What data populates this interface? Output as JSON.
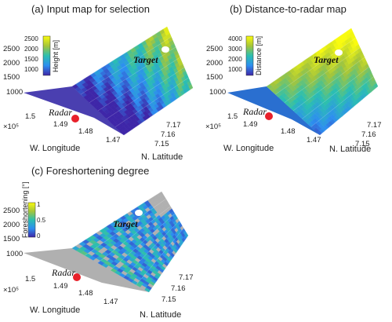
{
  "chart_data": [
    {
      "type": "surface",
      "title": "(a) Input map for selection",
      "xlabel": "W. Longitude",
      "ylabel": "N. Latitude",
      "z_ticks": [
        "2500",
        "2000",
        "1500",
        "1000"
      ],
      "x_ticks": [
        "1.5",
        "1.49",
        "1.48",
        "1.47"
      ],
      "x_exponent": "×10⁵",
      "y_ticks": [
        "7.17",
        "7.16",
        "7.15"
      ],
      "colorbar": {
        "label": "Height [m]",
        "ticks": [
          "2500",
          "2000",
          "1500",
          "1000"
        ],
        "range": [
          800,
          2600
        ],
        "colors": [
          "#3e26a8",
          "#2d8ef0",
          "#2bbfb0",
          "#a5c53a",
          "#f9fb0e"
        ]
      },
      "annotations": [
        "Radar",
        "Target"
      ],
      "colors": {
        "radar_marker": "#e8202a",
        "target_marker": "#ffffff"
      }
    },
    {
      "type": "surface",
      "title": "(b) Distance-to-radar map",
      "xlabel": "W. Longitude",
      "ylabel": "N. Latitude",
      "z_ticks": [
        "2500",
        "2000",
        "1500",
        "1000"
      ],
      "x_ticks": [
        "1.5",
        "1.49",
        "1.48",
        "1.47"
      ],
      "x_exponent": "×10⁵",
      "y_ticks": [
        "7.17",
        "7.16",
        "7.15"
      ],
      "colorbar": {
        "label": "Distance [m]",
        "ticks": [
          "4000",
          "3000",
          "2000",
          "1000"
        ],
        "range": [
          500,
          4200
        ],
        "colors": [
          "#3e26a8",
          "#2d8ef0",
          "#2bbfb0",
          "#a5c53a",
          "#f9fb0e"
        ]
      },
      "annotations": [
        "Radar",
        "Target"
      ],
      "colors": {
        "radar_marker": "#e8202a",
        "target_marker": "#ffffff"
      }
    },
    {
      "type": "surface",
      "title": "(c) Foreshortening degree",
      "xlabel": "W. Longitude",
      "ylabel": "N. Latitude",
      "z_ticks": [
        "2500",
        "2000",
        "1500",
        "1000"
      ],
      "x_ticks": [
        "1.5",
        "1.49",
        "1.48",
        "1.47"
      ],
      "x_exponent": "×10⁵",
      "y_ticks": [
        "7.17",
        "7.16",
        "7.15"
      ],
      "colorbar": {
        "label": "Foreshortening [°]",
        "ticks": [
          "1",
          "0.5",
          "0"
        ],
        "range": [
          0,
          1.1
        ],
        "colors": [
          "#3e26a8",
          "#2d8ef0",
          "#2bbfb0",
          "#a5c53a",
          "#f9fb0e"
        ]
      },
      "annotations": [
        "Radar",
        "Target"
      ],
      "colors": {
        "radar_marker": "#e8202a",
        "target_marker": "#ffffff",
        "masked": "#b0b0b0"
      }
    }
  ]
}
